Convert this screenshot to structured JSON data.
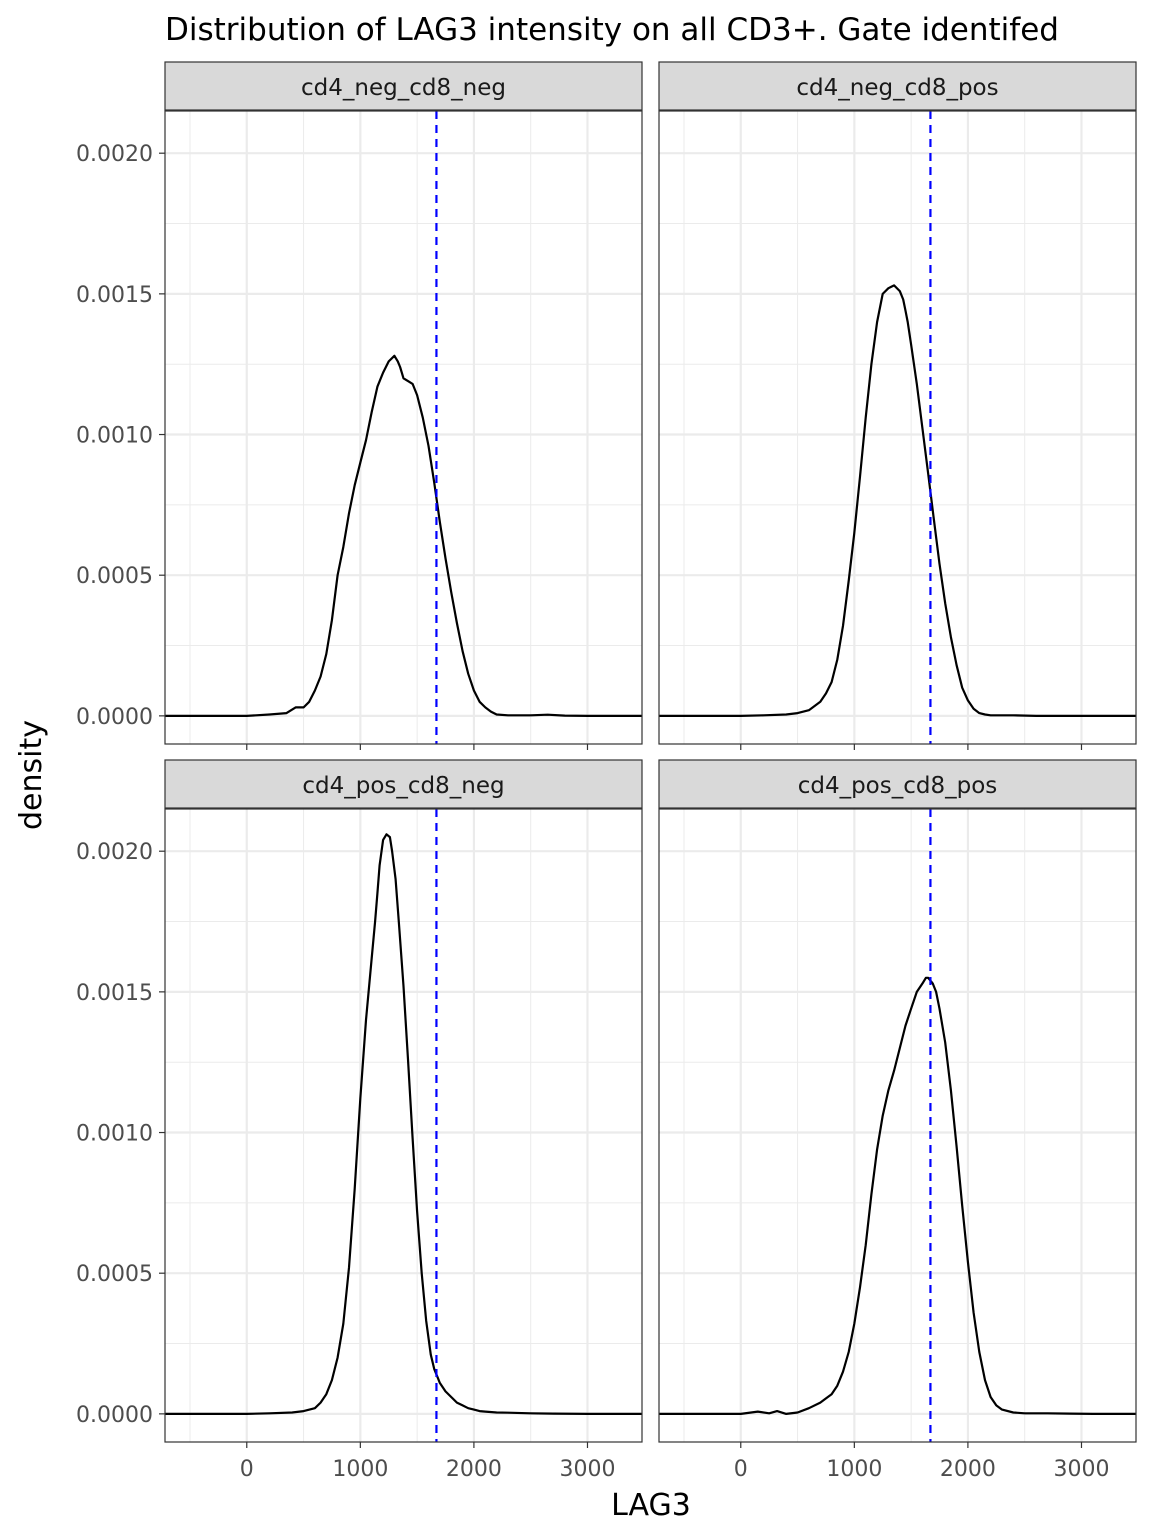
{
  "chart_data": {
    "type": "line",
    "title": "Distribution of LAG3 intensity on all CD3+. Gate identifed",
    "xlabel": "LAG3",
    "ylabel": "density",
    "xlim": [
      -720,
      3480
    ],
    "ylim": [
      -0.0001,
      0.00215
    ],
    "x_ticks": [
      0,
      1000,
      2000,
      3000
    ],
    "x_tick_labels": [
      "0",
      "1000",
      "2000",
      "3000"
    ],
    "y_ticks": [
      0,
      0.0005,
      0.001,
      0.0015,
      0.002
    ],
    "y_tick_labels": [
      "0.0000",
      "0.0005",
      "0.0010",
      "0.0015",
      "0.0020"
    ],
    "grid": true,
    "gate_line": {
      "x": 1670,
      "color": "#0000ff",
      "style": "dashed"
    },
    "line_color": "#000000",
    "panels": [
      {
        "label": "cd4_neg_cd8_neg",
        "x": [
          -720,
          -200,
          0,
          200,
          350,
          430,
          500,
          550,
          600,
          650,
          700,
          750,
          800,
          850,
          900,
          950,
          1000,
          1050,
          1100,
          1150,
          1200,
          1250,
          1300,
          1330,
          1350,
          1380,
          1420,
          1460,
          1500,
          1550,
          1600,
          1650,
          1700,
          1750,
          1800,
          1850,
          1900,
          1950,
          2000,
          2050,
          2100,
          2150,
          2200,
          2300,
          2400,
          2500,
          2650,
          2800,
          3000,
          3480
        ],
        "y": [
          0,
          0,
          0,
          5e-06,
          1e-05,
          3e-05,
          3e-05,
          5e-05,
          9e-05,
          0.00014,
          0.00022,
          0.00034,
          0.0005,
          0.0006,
          0.00072,
          0.00082,
          0.0009,
          0.00098,
          0.00108,
          0.00117,
          0.00122,
          0.00126,
          0.00128,
          0.00126,
          0.00124,
          0.0012,
          0.00119,
          0.00118,
          0.00114,
          0.00106,
          0.00096,
          0.00083,
          0.00069,
          0.00056,
          0.00044,
          0.00033,
          0.00023,
          0.00015,
          9e-05,
          5e-05,
          3e-05,
          1.5e-05,
          5e-06,
          2e-06,
          2e-06,
          2e-06,
          4e-06,
          1e-06,
          0,
          0
        ]
      },
      {
        "label": "cd4_neg_cd8_pos",
        "x": [
          -720,
          -200,
          0,
          200,
          400,
          500,
          600,
          700,
          750,
          800,
          850,
          900,
          950,
          1000,
          1050,
          1100,
          1150,
          1200,
          1250,
          1300,
          1350,
          1400,
          1430,
          1450,
          1470,
          1500,
          1550,
          1600,
          1650,
          1700,
          1750,
          1800,
          1850,
          1900,
          1950,
          2000,
          2050,
          2100,
          2150,
          2200,
          2300,
          2400,
          2600,
          2800,
          3000,
          3480
        ],
        "y": [
          0,
          0,
          0,
          2e-06,
          5e-06,
          1e-05,
          2e-05,
          5e-05,
          8e-05,
          0.00012,
          0.0002,
          0.00032,
          0.00048,
          0.00065,
          0.00085,
          0.00106,
          0.00125,
          0.0014,
          0.0015,
          0.00152,
          0.00153,
          0.00151,
          0.00148,
          0.00144,
          0.0014,
          0.00132,
          0.00118,
          0.00102,
          0.00086,
          0.0007,
          0.00054,
          0.0004,
          0.00028,
          0.00018,
          0.0001,
          5.5e-05,
          2.5e-05,
          1e-05,
          5e-06,
          2e-06,
          2e-06,
          2e-06,
          0,
          0,
          0,
          0
        ]
      },
      {
        "label": "cd4_pos_cd8_neg",
        "x": [
          -720,
          -200,
          0,
          200,
          400,
          500,
          600,
          650,
          700,
          750,
          800,
          850,
          900,
          950,
          1000,
          1050,
          1100,
          1130,
          1150,
          1170,
          1200,
          1230,
          1260,
          1280,
          1310,
          1340,
          1380,
          1420,
          1460,
          1500,
          1540,
          1580,
          1620,
          1650,
          1680,
          1700,
          1750,
          1800,
          1850,
          1900,
          1950,
          2000,
          2050,
          2100,
          2200,
          2300,
          2500,
          2700,
          3000,
          3480
        ],
        "y": [
          0,
          0,
          0,
          2e-06,
          5e-06,
          1e-05,
          2e-05,
          4e-05,
          7e-05,
          0.00012,
          0.0002,
          0.00032,
          0.00052,
          0.0008,
          0.00112,
          0.0014,
          0.00162,
          0.00175,
          0.00185,
          0.00195,
          0.00204,
          0.00206,
          0.00205,
          0.002,
          0.0019,
          0.00174,
          0.00152,
          0.00126,
          0.00098,
          0.00072,
          0.0005,
          0.00033,
          0.00021,
          0.00016,
          0.00013,
          0.00011,
          8e-05,
          6e-05,
          4e-05,
          3e-05,
          2e-05,
          1.5e-05,
          1e-05,
          8e-06,
          5e-06,
          4e-06,
          2e-06,
          1e-06,
          0,
          0
        ]
      },
      {
        "label": "cd4_pos_cd8_pos",
        "x": [
          -720,
          -200,
          0,
          150,
          250,
          320,
          400,
          500,
          600,
          700,
          800,
          850,
          900,
          950,
          1000,
          1050,
          1100,
          1150,
          1200,
          1250,
          1300,
          1350,
          1400,
          1450,
          1500,
          1550,
          1600,
          1630,
          1650,
          1670,
          1690,
          1720,
          1750,
          1800,
          1850,
          1900,
          1950,
          2000,
          2050,
          2100,
          2150,
          2200,
          2250,
          2300,
          2400,
          2500,
          2700,
          2900,
          3100,
          3480
        ],
        "y": [
          0,
          0,
          0,
          8e-06,
          2e-06,
          1e-05,
          0,
          5e-06,
          2e-05,
          4e-05,
          7e-05,
          0.0001,
          0.00015,
          0.00022,
          0.00032,
          0.00045,
          0.0006,
          0.00078,
          0.00094,
          0.00106,
          0.00115,
          0.00122,
          0.0013,
          0.00138,
          0.00144,
          0.0015,
          0.00153,
          0.00155,
          0.00155,
          0.00154,
          0.00153,
          0.0015,
          0.00144,
          0.00132,
          0.00115,
          0.00095,
          0.00074,
          0.00054,
          0.00036,
          0.00022,
          0.00012,
          6e-05,
          3e-05,
          1.5e-05,
          5e-06,
          2e-06,
          2e-06,
          1e-06,
          0,
          0
        ]
      }
    ]
  }
}
